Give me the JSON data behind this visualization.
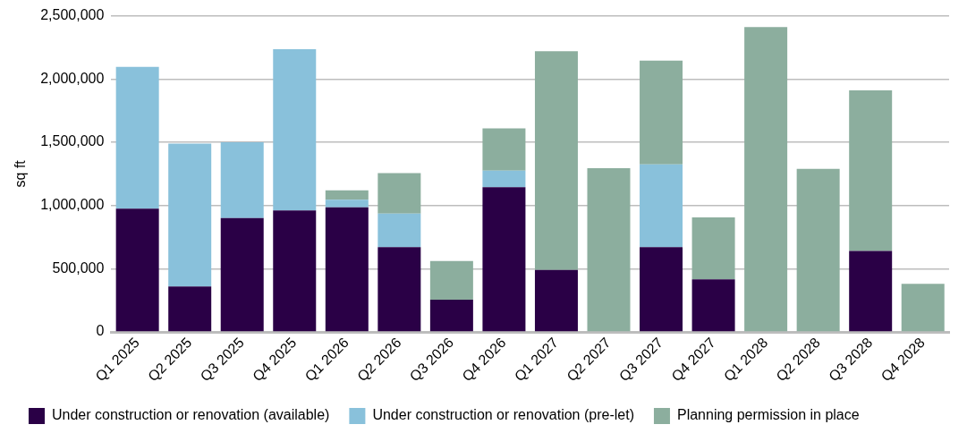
{
  "chart_data": {
    "type": "bar",
    "stacked": true,
    "ylabel": "sq ft",
    "categories": [
      "Q1 2025",
      "Q2 2025",
      "Q3 2025",
      "Q4 2025",
      "Q1 2026",
      "Q2 2026",
      "Q3 2026",
      "Q4 2026",
      "Q1 2027",
      "Q2 2027",
      "Q3 2027",
      "Q4 2027",
      "Q1 2028",
      "Q2 2028",
      "Q3 2028",
      "Q4 2028"
    ],
    "series": [
      {
        "name": "Under construction or renovation (available)",
        "color": "#2a0046",
        "values": [
          975000,
          360000,
          900000,
          960000,
          985000,
          670000,
          255000,
          1145000,
          490000,
          0,
          670000,
          415000,
          0,
          0,
          640000,
          0
        ]
      },
      {
        "name": "Under construction or renovation (pre-let)",
        "color": "#89c1db",
        "values": [
          1120000,
          1130000,
          600000,
          1275000,
          60000,
          265000,
          0,
          130000,
          0,
          0,
          655000,
          0,
          0,
          0,
          0,
          0
        ]
      },
      {
        "name": "Planning permission in place",
        "color": "#8cae9e",
        "values": [
          0,
          0,
          0,
          0,
          75000,
          320000,
          305000,
          335000,
          1730000,
          1295000,
          820000,
          490000,
          2410000,
          1290000,
          1270000,
          380000
        ]
      }
    ],
    "ylim": [
      0,
      2500000
    ],
    "yticks": [
      0,
      {
        "value": 500000,
        "label": "500,000"
      },
      {
        "value": 1000000,
        "label": "1,000,000"
      },
      {
        "value": 1500000,
        "label": "1,500,000"
      },
      {
        "value": 2000000,
        "label": "2,000,000"
      },
      {
        "value": 2500000,
        "label": "2,500,000"
      }
    ],
    "grid": "y",
    "legend": "bottom"
  }
}
